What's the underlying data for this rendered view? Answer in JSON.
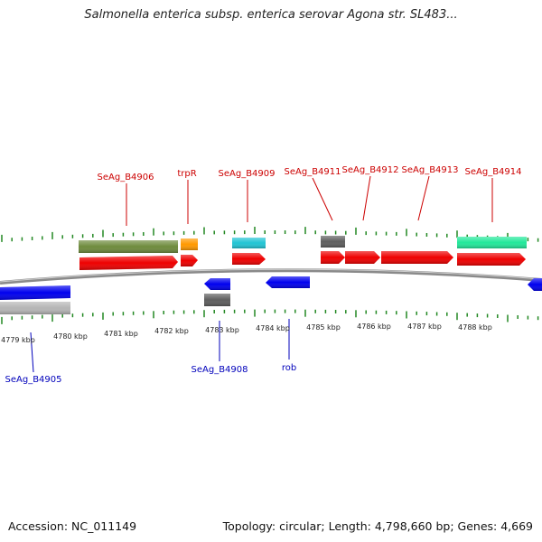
{
  "title": "Salmonella enterica subsp. enterica serovar Agona str. SL483...",
  "footer": {
    "accession": "Accession: NC_011149",
    "summary": "Topology: circular; Length: 4,798,660 bp; Genes: 4,669"
  },
  "colors": {
    "forward_label": "#cc0000",
    "reverse_label": "#0000bb",
    "tick": "#228822",
    "backbone": "#888888"
  },
  "scale": {
    "ticks": [
      "4779 kbp",
      "4780 kbp",
      "4781 kbp",
      "4782 kbp",
      "4783 kbp",
      "4784 kbp",
      "4785 kbp",
      "4786 kbp",
      "4787 kbp",
      "4788 kbp"
    ]
  },
  "gene_labels": {
    "forward": [
      "SeAg_B4906",
      "trpR",
      "SeAg_B4909",
      "SeAg_B4911",
      "SeAg_B4912",
      "SeAg_B4913",
      "SeAg_B4914"
    ],
    "reverse": [
      "SeAg_B4905",
      "SeAg_B4908",
      "rob"
    ]
  }
}
